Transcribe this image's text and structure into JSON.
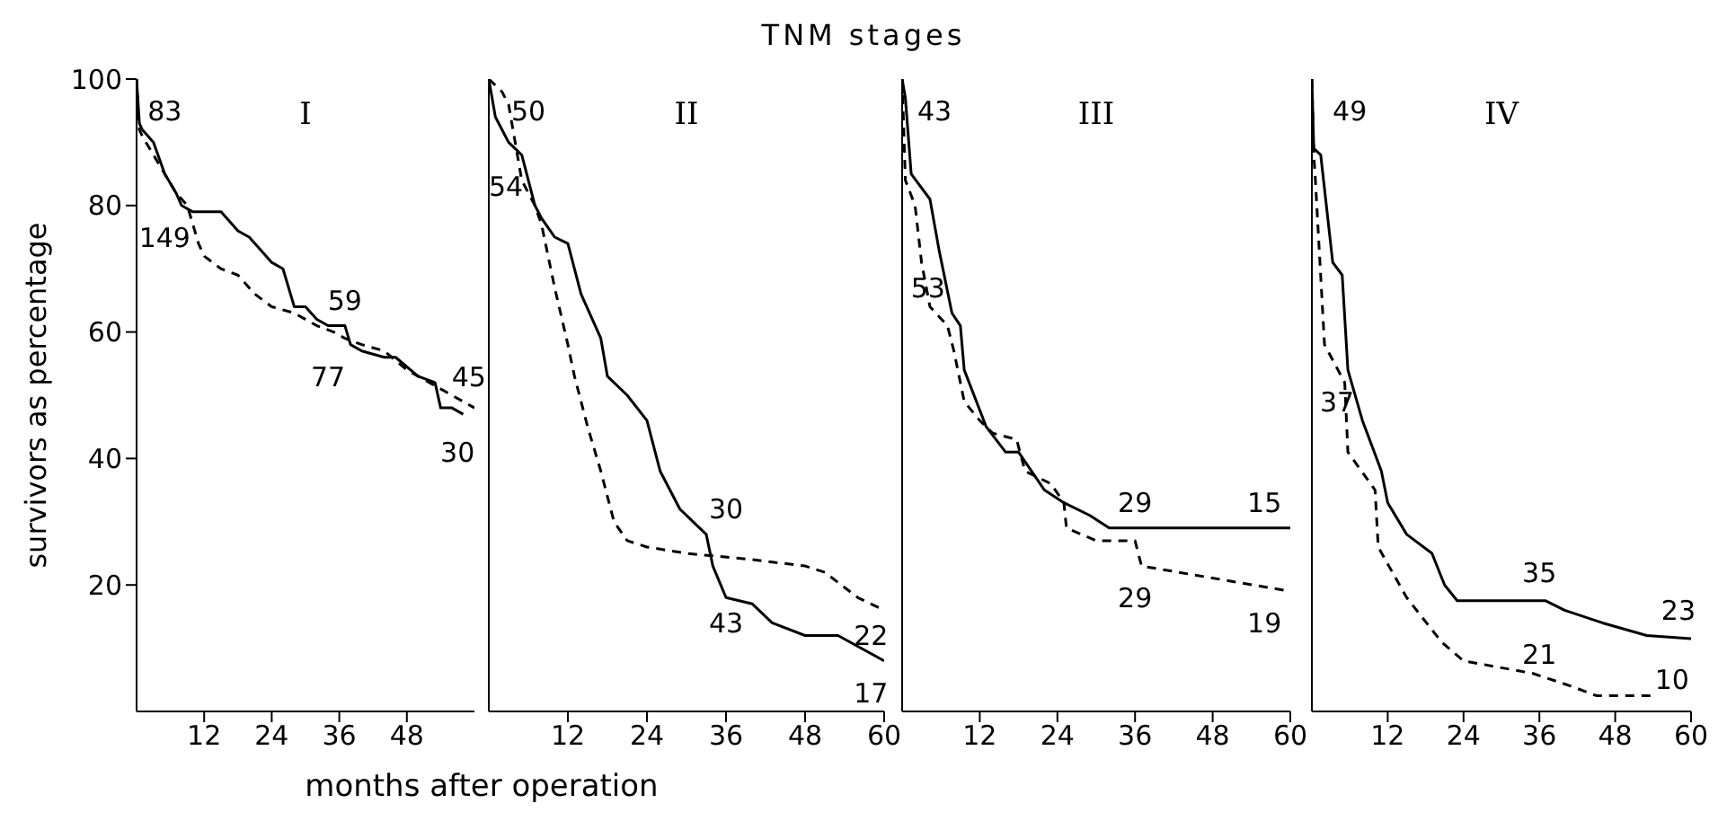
{
  "chart_data": [
    {
      "type": "line",
      "subtitle": "I",
      "xlabel": "months after operation",
      "ylabel": "survivors as percentage",
      "xlim": [
        0,
        60
      ],
      "xticks": [
        12,
        24,
        36,
        48
      ],
      "ylim": [
        0,
        100
      ],
      "yticks": [
        20,
        40,
        60,
        80,
        100
      ],
      "series": [
        {
          "color": "#000000",
          "line_style": "solid",
          "x": [
            0,
            0.5,
            1,
            3,
            5,
            7,
            8,
            10,
            15,
            18,
            20,
            22,
            24,
            26,
            28,
            30,
            32,
            34,
            37,
            38,
            40,
            44,
            46,
            50,
            53,
            54,
            56,
            58
          ],
          "values": [
            100,
            93,
            92,
            90,
            85,
            82,
            80,
            79,
            79,
            76,
            75,
            73,
            71,
            70,
            64,
            64,
            62,
            61,
            61,
            58,
            57,
            56,
            56,
            53,
            52,
            48,
            48,
            47
          ]
        },
        {
          "color": "#000000",
          "line_style": "dashed",
          "x": [
            0,
            0.5,
            1,
            3,
            5,
            7,
            9,
            11,
            12,
            15,
            18,
            21,
            24,
            28,
            32,
            35,
            37,
            40,
            44,
            48,
            52,
            56,
            60
          ],
          "values": [
            100,
            92,
            91,
            88,
            85,
            82,
            80,
            74,
            72,
            70,
            69,
            66,
            64,
            63,
            61,
            60,
            59,
            58,
            57,
            54,
            52,
            50,
            48
          ]
        }
      ],
      "annotations": [
        "83",
        "149",
        "59",
        "77",
        "45",
        "30"
      ]
    },
    {
      "type": "line",
      "title": "TNM stages",
      "subtitle": "II",
      "xlim": [
        0,
        60
      ],
      "xticks": [
        12,
        24,
        36,
        48,
        60
      ],
      "ylim": [
        0,
        100
      ],
      "tick_labels": "x",
      "series": [
        {
          "color": "#000000",
          "line_style": "solid",
          "x": [
            0,
            1,
            3,
            5,
            7,
            8,
            10,
            12,
            14,
            17,
            18,
            21,
            24,
            26,
            29,
            32,
            33,
            34,
            36,
            40,
            43,
            48,
            53,
            60
          ],
          "values": [
            100,
            94,
            90,
            88,
            80,
            78,
            75,
            74,
            66,
            59,
            53,
            50,
            46,
            38,
            32,
            29,
            28,
            23,
            18,
            17,
            14,
            12,
            12,
            8
          ]
        },
        {
          "color": "#000000",
          "line_style": "dashed",
          "x": [
            0,
            2,
            3,
            4,
            5,
            7,
            8,
            10,
            12,
            13,
            15,
            17,
            19,
            21,
            24,
            30,
            40,
            48,
            51,
            56,
            60
          ],
          "values": [
            100,
            98,
            96,
            90,
            84,
            80,
            77,
            67,
            58,
            53,
            45,
            38,
            30,
            27,
            26,
            25,
            24,
            23,
            22,
            18,
            16
          ]
        }
      ],
      "annotations": [
        "50",
        "54",
        "30",
        "43",
        "22",
        "17"
      ]
    },
    {
      "type": "line",
      "subtitle": "III",
      "xlim": [
        0,
        60
      ],
      "xticks": [
        12,
        24,
        36,
        48,
        60
      ],
      "ylim": [
        0,
        100
      ],
      "tick_labels": "x",
      "series": [
        {
          "color": "#000000",
          "line_style": "solid",
          "x": [
            0,
            0.5,
            1.4,
            4.3,
            5.7,
            7.7,
            9,
            9.6,
            13,
            16,
            18,
            22,
            25,
            29,
            32,
            60
          ],
          "values": [
            100,
            97,
            85,
            81,
            73,
            63,
            61,
            54,
            45,
            41,
            41,
            35,
            33,
            31,
            29,
            29
          ]
        },
        {
          "color": "#000000",
          "line_style": "dashed",
          "x": [
            0,
            0.5,
            2,
            3,
            4.3,
            7,
            8,
            9.6,
            12,
            14,
            17.7,
            19,
            23,
            25,
            25.4,
            30,
            36,
            37,
            60
          ],
          "values": [
            100,
            84,
            80,
            71,
            64,
            61,
            57,
            49,
            46,
            44,
            43,
            38,
            36,
            33,
            29,
            27,
            27,
            23,
            19
          ]
        }
      ],
      "annotations": [
        "43",
        "53",
        "29",
        "15",
        "29",
        "19"
      ]
    },
    {
      "type": "line",
      "subtitle": "IV",
      "xlim": [
        0,
        60
      ],
      "xticks": [
        12,
        24,
        36,
        48,
        60
      ],
      "ylim": [
        0,
        100
      ],
      "tick_labels": "x",
      "series": [
        {
          "color": "#000000",
          "line_style": "solid",
          "x": [
            0,
            0.3,
            1.4,
            3.3,
            4.8,
            5.7,
            8,
            11,
            12,
            15,
            19,
            21,
            23,
            36,
            37,
            40,
            46,
            53,
            60
          ],
          "values": [
            100,
            89,
            88,
            71,
            69,
            54,
            46,
            38,
            33,
            28,
            25,
            20,
            17.5,
            17.5,
            17.5,
            16,
            14,
            12,
            11.5
          ]
        },
        {
          "color": "#000000",
          "line_style": "dashed",
          "x": [
            0,
            0.3,
            0.5,
            2,
            5.2,
            5.7,
            10,
            10.5,
            15,
            20.5,
            24,
            35,
            41,
            45,
            54
          ],
          "values": [
            100,
            88,
            85,
            58,
            52,
            41,
            35,
            26,
            18,
            11,
            8,
            6,
            4,
            2.5,
            2.5
          ]
        }
      ],
      "annotations": [
        "49",
        "37",
        "35",
        "23",
        "21",
        "10"
      ]
    }
  ]
}
